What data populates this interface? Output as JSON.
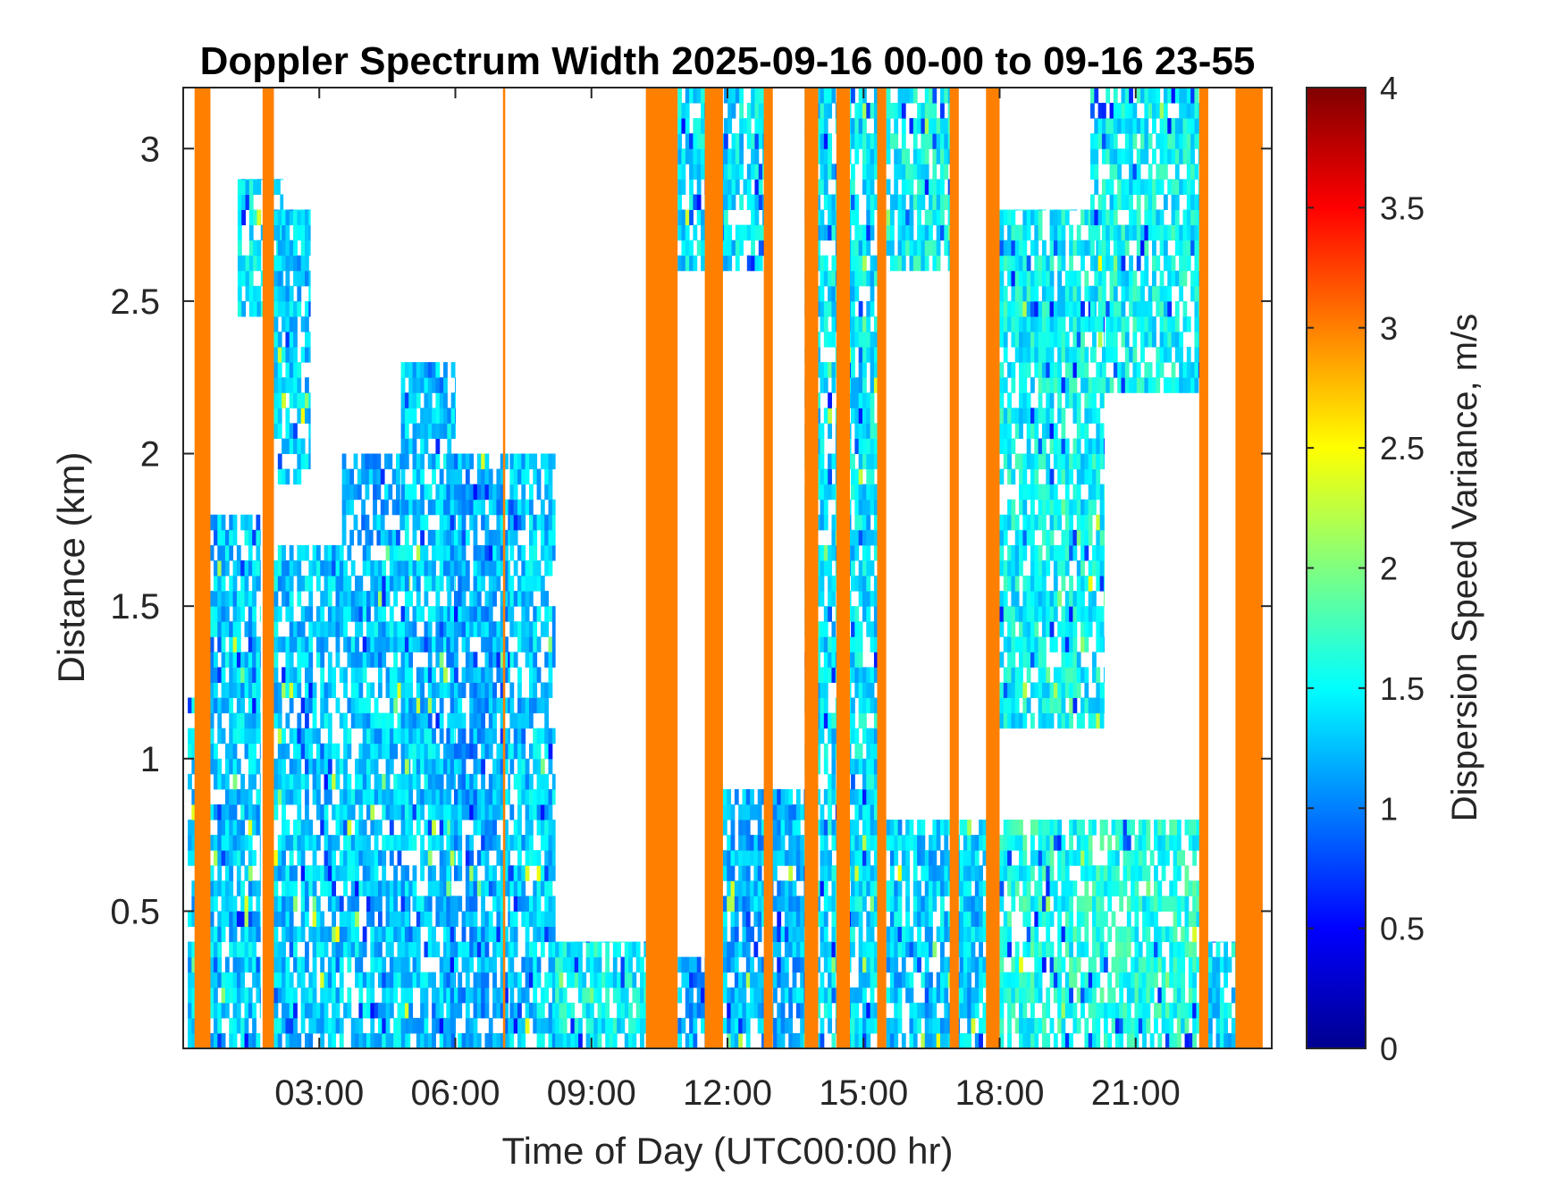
{
  "chart_data": {
    "type": "heatmap",
    "title": "Doppler Spectrum Width 2025-09-16 00-00 to 09-16 23-55",
    "xlabel": "Time of Day (UTC00:00 hr)",
    "ylabel": "Distance (km)",
    "colorbar_label": "Dispersion Speed Variance, m/s",
    "colormap": "jet",
    "xlim": [
      0,
      24
    ],
    "ylim": [
      0.05,
      3.2
    ],
    "clim": [
      0,
      4
    ],
    "x_tick_labels": [
      "03:00",
      "06:00",
      "09:00",
      "12:00",
      "15:00",
      "18:00",
      "21:00"
    ],
    "x_tick_values": [
      3,
      6,
      9,
      12,
      15,
      18,
      21
    ],
    "y_tick_labels": [
      "0.5",
      "1",
      "1.5",
      "2",
      "2.5",
      "3"
    ],
    "y_tick_values": [
      0.5,
      1,
      1.5,
      2,
      2.5,
      3
    ],
    "colorbar_tick_labels": [
      "0",
      "0.5",
      "1",
      "1.5",
      "2",
      "2.5",
      "3",
      "3.5",
      "4"
    ],
    "colorbar_tick_values": [
      0,
      0.5,
      1,
      1.5,
      2,
      2.5,
      3,
      3.5,
      4
    ],
    "saturated_value": 3.0,
    "saturated_columns_hr": [
      [
        0.25,
        0.6
      ],
      [
        1.75,
        2.0
      ],
      [
        7.05,
        7.1
      ],
      [
        10.2,
        10.9
      ],
      [
        11.5,
        11.9
      ],
      [
        12.8,
        13.0
      ],
      [
        13.7,
        14.0
      ],
      [
        14.4,
        14.7
      ],
      [
        15.3,
        15.5
      ],
      [
        16.9,
        17.1
      ],
      [
        17.7,
        18.0
      ],
      [
        22.4,
        22.6
      ],
      [
        23.2,
        23.8
      ]
    ],
    "echo_regions": [
      {
        "x": [
          0.1,
          0.5
        ],
        "y": [
          0.05,
          1.2
        ],
        "value": 1.3
      },
      {
        "x": [
          0.5,
          1.7
        ],
        "y": [
          0.05,
          1.8
        ],
        "value": 1.3
      },
      {
        "x": [
          1.2,
          2.2
        ],
        "y": [
          2.45,
          2.9
        ],
        "value": 1.4
      },
      {
        "x": [
          2.0,
          2.8
        ],
        "y": [
          1.9,
          2.8
        ],
        "value": 1.3
      },
      {
        "x": [
          2.0,
          5.0
        ],
        "y": [
          0.05,
          1.7
        ],
        "value": 1.3
      },
      {
        "x": [
          3.5,
          4.8
        ],
        "y": [
          1.7,
          2.0
        ],
        "value": 1.2
      },
      {
        "x": [
          4.8,
          6.0
        ],
        "y": [
          0.05,
          2.3
        ],
        "value": 1.3
      },
      {
        "x": [
          5.8,
          7.2
        ],
        "y": [
          0.05,
          2.0
        ],
        "value": 1.2
      },
      {
        "x": [
          7.2,
          8.2
        ],
        "y": [
          0.05,
          2.0
        ],
        "value": 1.3
      },
      {
        "x": [
          8.2,
          10.2
        ],
        "y": [
          0.05,
          0.4
        ],
        "value": 1.5
      },
      {
        "x": [
          10.9,
          11.5
        ],
        "y": [
          0.05,
          0.35
        ],
        "value": 1.2
      },
      {
        "x": [
          10.9,
          12.8
        ],
        "y": [
          2.6,
          3.2
        ],
        "value": 1.4
      },
      {
        "x": [
          11.9,
          13.7
        ],
        "y": [
          0.05,
          0.9
        ],
        "value": 1.2
      },
      {
        "x": [
          13.7,
          15.3
        ],
        "y": [
          0.05,
          3.2
        ],
        "value": 1.4
      },
      {
        "x": [
          15.5,
          16.9
        ],
        "y": [
          2.6,
          3.2
        ],
        "value": 1.5
      },
      {
        "x": [
          15.5,
          17.7
        ],
        "y": [
          0.05,
          0.8
        ],
        "value": 1.3
      },
      {
        "x": [
          18.0,
          20.3
        ],
        "y": [
          1.1,
          2.8
        ],
        "value": 1.5
      },
      {
        "x": [
          18.0,
          22.4
        ],
        "y": [
          0.05,
          0.8
        ],
        "value": 1.6
      },
      {
        "x": [
          20.0,
          22.4
        ],
        "y": [
          2.2,
          3.2
        ],
        "value": 1.5
      },
      {
        "x": [
          22.6,
          23.2
        ],
        "y": [
          0.05,
          0.4
        ],
        "value": 1.4
      }
    ]
  }
}
